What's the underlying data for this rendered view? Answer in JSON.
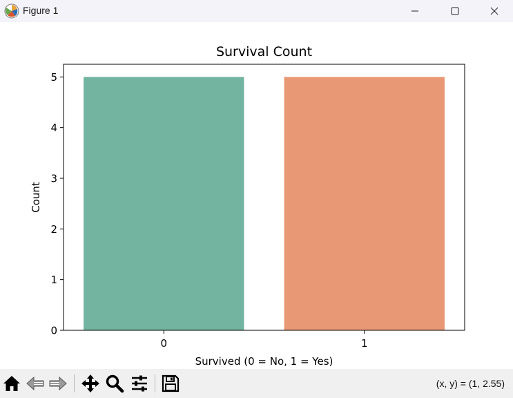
{
  "window": {
    "title": "Figure 1",
    "icons": {
      "app": "matplotlib-logo-icon",
      "minimize": "minimize-icon",
      "maximize": "maximize-icon",
      "close": "close-icon"
    }
  },
  "toolbar": {
    "buttons": [
      {
        "name": "home-icon"
      },
      {
        "name": "back-arrow-icon"
      },
      {
        "name": "forward-arrow-icon"
      },
      {
        "name": "pan-move-icon"
      },
      {
        "name": "zoom-magnifier-icon"
      },
      {
        "name": "configure-subplots-icon"
      },
      {
        "name": "save-floppy-icon"
      }
    ],
    "coordinates": "(x, y) = (1, 2.55)"
  },
  "chart_data": {
    "type": "bar",
    "title": "Survival Count",
    "xlabel": "Survived (0 = No, 1 = Yes)",
    "ylabel": "Count",
    "categories": [
      "0",
      "1"
    ],
    "values": [
      5,
      5
    ],
    "colors": [
      "#73b4a0",
      "#e99875"
    ],
    "ylim": [
      0,
      5.25
    ],
    "yticks": [
      0,
      1,
      2,
      3,
      4,
      5
    ],
    "grid": false,
    "legend": "none"
  }
}
